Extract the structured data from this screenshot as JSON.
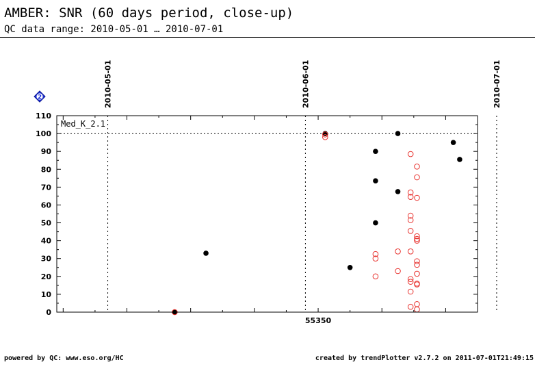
{
  "header": {
    "title": "AMBER: SNR (60 days period, close-up)",
    "subtitle": "QC data range: 2010-05-01 … 2010-07-01"
  },
  "footer": {
    "left": "powered by QC: www.eso.org/HC",
    "right": "created by trendPlotter v2.7.2 on 2011-07-01T21:49:15"
  },
  "chart_data": {
    "type": "scatter",
    "title": "",
    "xlabel": "",
    "ylabel": "",
    "xlim": [
      55309.0,
      55375.0
    ],
    "ylim": [
      0,
      110
    ],
    "x_ticks": [
      55350
    ],
    "y_ticks": [
      0,
      10,
      20,
      30,
      40,
      50,
      60,
      70,
      80,
      90,
      100,
      110
    ],
    "date_markers": [
      {
        "x": 55317,
        "label": "2010-05-01"
      },
      {
        "x": 55348,
        "label": "2010-06-01"
      },
      {
        "x": 55378,
        "label": "2010-07-01"
      }
    ],
    "reference_line": {
      "y": 100,
      "label": "Med_K_2.1"
    },
    "legend_icon": "2",
    "grid": false,
    "series": [
      {
        "marker": "filled-circle",
        "color": "#000000",
        "points": [
          [
            55327.5,
            0
          ],
          [
            55332.4,
            33
          ],
          [
            55351.1,
            100
          ],
          [
            55355.0,
            25
          ],
          [
            55359.0,
            90
          ],
          [
            55359.0,
            73.5
          ],
          [
            55359.0,
            50
          ],
          [
            55362.5,
            100
          ],
          [
            55362.5,
            67.5
          ],
          [
            55371.2,
            95
          ],
          [
            55372.2,
            85.5
          ]
        ]
      },
      {
        "marker": "open-circle",
        "color": "#e8322e",
        "points": [
          [
            55327.5,
            0
          ],
          [
            55351.1,
            99.5
          ],
          [
            55351.1,
            98
          ],
          [
            55359.0,
            32.5
          ],
          [
            55359.0,
            30
          ],
          [
            55359.0,
            20
          ],
          [
            55362.5,
            34
          ],
          [
            55362.5,
            23
          ],
          [
            55364.5,
            88.5
          ],
          [
            55364.5,
            67
          ],
          [
            55364.5,
            64.5
          ],
          [
            55364.5,
            54
          ],
          [
            55364.5,
            51.5
          ],
          [
            55364.5,
            45.5
          ],
          [
            55364.5,
            34
          ],
          [
            55364.5,
            18.5
          ],
          [
            55364.5,
            17
          ],
          [
            55364.5,
            11.5
          ],
          [
            55364.5,
            3
          ],
          [
            55365.5,
            81.5
          ],
          [
            55365.5,
            75.5
          ],
          [
            55365.5,
            64
          ],
          [
            55365.5,
            42.5
          ],
          [
            55365.5,
            41
          ],
          [
            55365.5,
            40
          ],
          [
            55365.5,
            28.5
          ],
          [
            55365.5,
            26.5
          ],
          [
            55365.5,
            21.5
          ],
          [
            55365.5,
            16
          ],
          [
            55365.5,
            15.5
          ],
          [
            55365.5,
            4.5
          ],
          [
            55365.5,
            1.5
          ]
        ]
      }
    ]
  }
}
